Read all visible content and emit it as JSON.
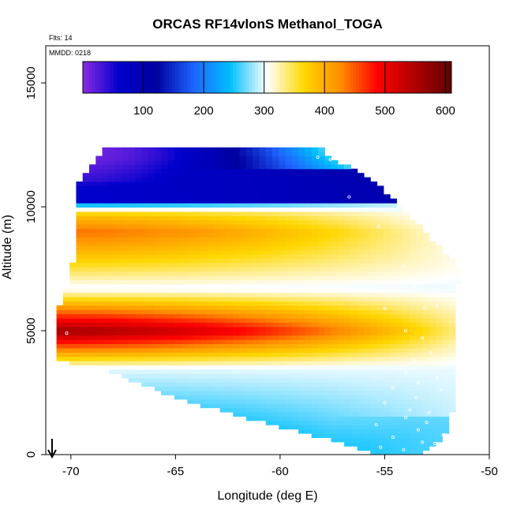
{
  "chart_data": {
    "type": "heatmap",
    "title": "ORCAS RF14vlonS Methanol_TOGA",
    "annotations": {
      "flights": "Flts: 14",
      "date": "MMDD: 0218"
    },
    "xlabel": "Longitude (deg E)",
    "ylabel": "Altitude (m)",
    "xlim": [
      -71.2,
      -50
    ],
    "ylim": [
      0,
      16500
    ],
    "x_ticks": [
      -70,
      -65,
      -60,
      -55,
      -50
    ],
    "x_tick_labels": [
      "-70",
      "-65",
      "-60",
      "-55",
      "-50"
    ],
    "y_ticks": [
      0,
      5000,
      10000,
      15000
    ],
    "y_tick_labels": [
      "0",
      "5000",
      "10000",
      "15000"
    ],
    "colorbar": {
      "range": [
        0,
        610
      ],
      "ticks": [
        100,
        200,
        300,
        400,
        500,
        600
      ],
      "tick_labels": [
        "100",
        "200",
        "300",
        "400",
        "500",
        "600"
      ],
      "colors": [
        "#8a2be2",
        "#0000cd",
        "#0000a0",
        "#1e64ff",
        "#00bfff",
        "#ffffff",
        "#ffd700",
        "#ff8c00",
        "#ff0000",
        "#b00000",
        "#600000"
      ]
    },
    "field_layers": [
      {
        "description_value": 200,
        "altitude": 12000,
        "value": 15
      },
      {
        "altitude": 11000,
        "value": 40
      },
      {
        "altitude": 10300,
        "value": 170
      },
      {
        "altitude": 9700,
        "value": 380
      },
      {
        "altitude": 9000,
        "value": 440
      },
      {
        "altitude": 8000,
        "value": 380
      },
      {
        "altitude": 6700,
        "value": 300
      },
      {
        "altitude": 5000,
        "value": 560
      },
      {
        "altitude": 3500,
        "value": 300
      },
      {
        "altitude": 1500,
        "value": 240
      },
      {
        "altitude": 300,
        "value": 200
      }
    ],
    "domain_extent": {
      "west_edge": [
        [
          0,
          -70.6
        ],
        [
          3800,
          -70.6
        ],
        [
          5800,
          -70.6
        ],
        [
          6700,
          -70.2
        ],
        [
          7800,
          -69.9
        ],
        [
          9000,
          -69.9
        ],
        [
          10000,
          -69.9
        ],
        [
          11000,
          -69.6
        ],
        [
          12200,
          -68.5
        ]
      ],
      "east_edge": [
        [
          0,
          -53.2
        ],
        [
          1000,
          -51.8
        ],
        [
          5000,
          -51.7
        ],
        [
          7500,
          -51.4
        ],
        [
          8500,
          -52.5
        ],
        [
          10000,
          -54.2
        ],
        [
          11000,
          -55.4
        ],
        [
          12200,
          -58.0
        ]
      ],
      "bottom_edge": [
        [
          -70.6,
          3800
        ],
        [
          -68,
          3300
        ],
        [
          -65,
          2300
        ],
        [
          -60,
          1100
        ],
        [
          -57,
          500
        ],
        [
          -55.5,
          0
        ],
        [
          -53.2,
          0
        ]
      ]
    },
    "flight_track_points": [
      [
        -58.2,
        12000
      ],
      [
        -57.6,
        11900
      ],
      [
        -56.7,
        10400
      ],
      [
        -55.3,
        9200
      ],
      [
        -54.1,
        7600
      ],
      [
        -53.6,
        6800
      ],
      [
        -52.9,
        6500
      ],
      [
        -52.5,
        6000
      ],
      [
        -53.1,
        5900
      ],
      [
        -55.0,
        5900
      ],
      [
        -54.0,
        5000
      ],
      [
        -53.2,
        4700
      ],
      [
        -52.8,
        4100
      ],
      [
        -53.6,
        3800
      ],
      [
        -52.4,
        3600
      ],
      [
        -54.0,
        3300
      ],
      [
        -52.5,
        3100
      ],
      [
        -53.4,
        2900
      ],
      [
        -54.6,
        2700
      ],
      [
        -52.3,
        2600
      ],
      [
        -53.5,
        2300
      ],
      [
        -55.0,
        2100
      ],
      [
        -53.8,
        1800
      ],
      [
        -52.9,
        1700
      ],
      [
        -54.0,
        1500
      ],
      [
        -53.0,
        1300
      ],
      [
        -55.4,
        1200
      ],
      [
        -53.4,
        1000
      ],
      [
        -52.2,
        800
      ],
      [
        -54.6,
        700
      ],
      [
        -53.2,
        500
      ],
      [
        -55.2,
        300
      ],
      [
        -54.1,
        200
      ],
      [
        -52.6,
        450
      ],
      [
        -51.8,
        7200
      ],
      [
        -70.2,
        4900
      ]
    ],
    "marker": {
      "type": "arrow-down",
      "x": -70.9
    }
  }
}
